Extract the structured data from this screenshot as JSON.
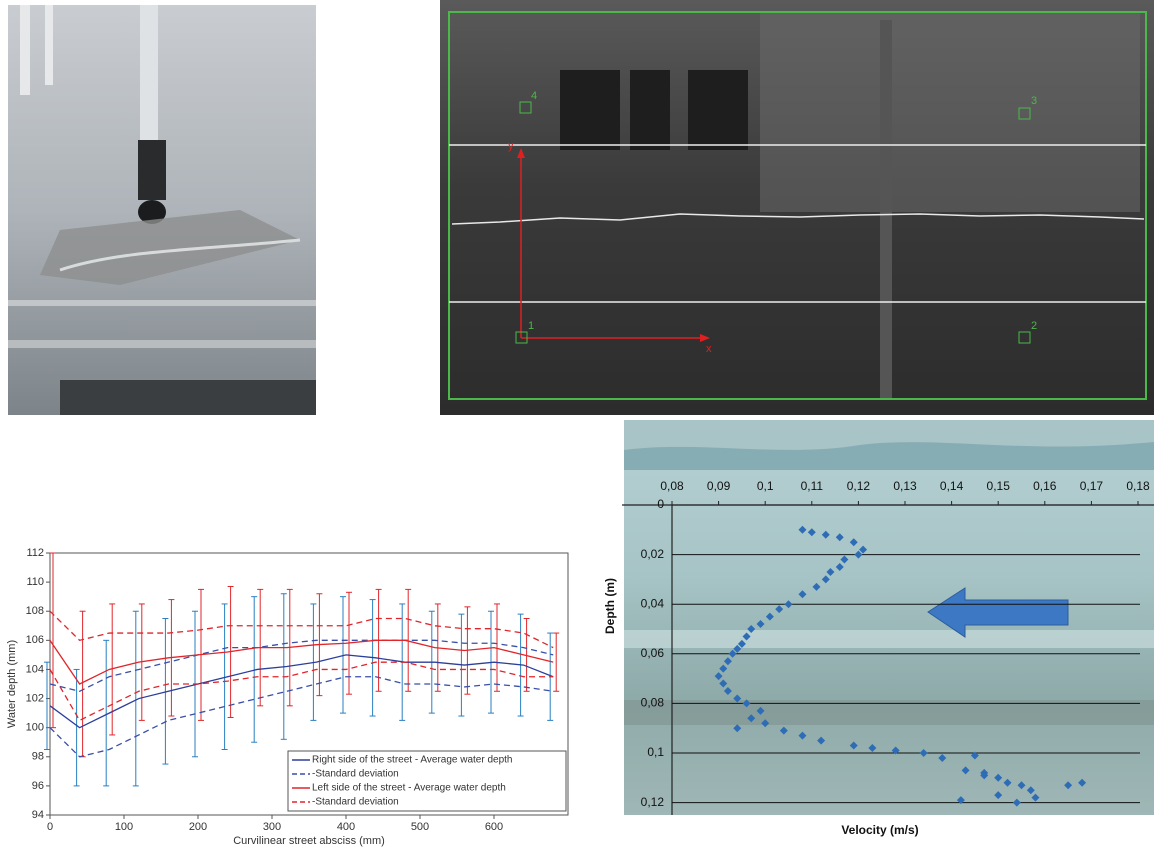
{
  "photo_annotations": {
    "points": [
      "1",
      "2",
      "3",
      "4"
    ],
    "axes": [
      "x",
      "y"
    ]
  },
  "chart_data": [
    {
      "type": "line",
      "x_label": "Curvilinear street absciss (mm)",
      "y_label": "Water depth (mm)",
      "x": [
        0,
        40,
        80,
        120,
        160,
        200,
        240,
        280,
        320,
        360,
        400,
        440,
        480,
        520,
        560,
        600,
        640,
        680
      ],
      "xlim": [
        0,
        700
      ],
      "xticks": [
        0,
        100,
        200,
        300,
        400,
        500,
        600
      ],
      "ylim": [
        94,
        112
      ],
      "yticks": [
        94,
        96,
        98,
        100,
        102,
        104,
        106,
        108,
        110,
        112
      ],
      "legend": "lower right",
      "series": [
        {
          "name": "Right side of the street - Average water depth",
          "color": "#2c3f9a",
          "bar_color": "#2b7fc1",
          "values": [
            101.5,
            100,
            101,
            102,
            102.5,
            103,
            103.5,
            104,
            104.2,
            104.5,
            105,
            104.8,
            104.5,
            104.5,
            104.3,
            104.5,
            104.3,
            103.5
          ],
          "errors": [
            3,
            4,
            5,
            6,
            5,
            5,
            5,
            5,
            5,
            4,
            4,
            4,
            4,
            3.5,
            3.5,
            3.5,
            3.5,
            3
          ]
        },
        {
          "name": "-Standard deviation",
          "color": "#3a4fa8",
          "dashed": true,
          "upper": [
            103,
            102.5,
            103.5,
            104,
            104.5,
            105,
            105.5,
            105.5,
            105.8,
            106,
            106,
            106,
            106,
            106,
            105.8,
            105.8,
            105.5,
            105
          ],
          "lower": [
            100,
            98,
            98.5,
            99.5,
            100.5,
            101,
            101.5,
            102,
            102.5,
            103,
            103.5,
            103.5,
            103,
            103,
            102.8,
            103,
            102.8,
            102.5
          ]
        },
        {
          "name": "Left side of the street - Average water depth",
          "color": "#e0262b",
          "bar_color": "#e0262b",
          "values": [
            106,
            103,
            104,
            104.5,
            104.8,
            105,
            105.2,
            105.5,
            105.5,
            105.7,
            105.8,
            106,
            106,
            105.5,
            105.3,
            105.5,
            105,
            104.5
          ],
          "errors": [
            6,
            5,
            4.5,
            4,
            4,
            4.5,
            4.5,
            4,
            4,
            3.5,
            3.5,
            3.5,
            3.5,
            3,
            3,
            3,
            2.5,
            2
          ]
        },
        {
          "name": "-Standard deviation",
          "color": "#e0262b",
          "dashed": true,
          "upper": [
            108,
            106,
            106.5,
            106.5,
            106.5,
            106.7,
            107,
            107,
            107,
            107,
            107,
            107.5,
            107.5,
            107,
            106.8,
            106.8,
            106.5,
            105.5
          ],
          "lower": [
            104,
            100.5,
            101.5,
            102.5,
            103,
            103,
            103.2,
            103.5,
            103.5,
            104,
            104,
            104.5,
            104.5,
            104,
            104,
            104,
            103.5,
            103.5
          ]
        }
      ]
    },
    {
      "type": "scatter",
      "x_label": "Velocity (m/s)",
      "y_label": "Depth (m)",
      "color": "#2e6db5",
      "y_inverted": true,
      "grid": true,
      "xlim": [
        0.08,
        0.18
      ],
      "xticks": [
        {
          "value": 0.08,
          "label": "0,08"
        },
        {
          "value": 0.09,
          "label": "0,09"
        },
        {
          "value": 0.1,
          "label": "0,1"
        },
        {
          "value": 0.11,
          "label": "0,11"
        },
        {
          "value": 0.12,
          "label": "0,12"
        },
        {
          "value": 0.13,
          "label": "0,13"
        },
        {
          "value": 0.14,
          "label": "0,14"
        },
        {
          "value": 0.15,
          "label": "0,15"
        },
        {
          "value": 0.16,
          "label": "0,16"
        },
        {
          "value": 0.17,
          "label": "0,17"
        },
        {
          "value": 0.18,
          "label": "0,18"
        }
      ],
      "ylim": [
        0,
        0.125
      ],
      "yticks": [
        0,
        {
          "value": 0.02,
          "label": "0,02"
        },
        {
          "value": 0.04,
          "label": "0,04"
        },
        {
          "value": 0.06,
          "label": "0,06"
        },
        {
          "value": 0.08,
          "label": "0,08"
        },
        {
          "value": 0.1,
          "label": "0,1"
        },
        {
          "value": 0.12,
          "label": "0,12"
        }
      ],
      "x": [
        0.108,
        0.11,
        0.113,
        0.116,
        0.119,
        0.121,
        0.12,
        0.117,
        0.116,
        0.114,
        0.113,
        0.111,
        0.108,
        0.105,
        0.103,
        0.101,
        0.099,
        0.097,
        0.096,
        0.095,
        0.094,
        0.093,
        0.092,
        0.091,
        0.09,
        0.091,
        0.092,
        0.094,
        0.096,
        0.099,
        0.097,
        0.1,
        0.094,
        0.104,
        0.108,
        0.112,
        0.119,
        0.123,
        0.128,
        0.134,
        0.138,
        0.145,
        0.143,
        0.147,
        0.15,
        0.152,
        0.155,
        0.157,
        0.158,
        0.154,
        0.15,
        0.142,
        0.147,
        0.165,
        0.168
      ],
      "values": [
        0.01,
        0.011,
        0.012,
        0.013,
        0.015,
        0.018,
        0.02,
        0.022,
        0.025,
        0.027,
        0.03,
        0.033,
        0.036,
        0.04,
        0.042,
        0.045,
        0.048,
        0.05,
        0.053,
        0.056,
        0.058,
        0.06,
        0.063,
        0.066,
        0.069,
        0.072,
        0.075,
        0.078,
        0.08,
        0.083,
        0.086,
        0.088,
        0.09,
        0.091,
        0.093,
        0.095,
        0.097,
        0.098,
        0.099,
        0.1,
        0.102,
        0.101,
        0.107,
        0.108,
        0.11,
        0.112,
        0.113,
        0.115,
        0.118,
        0.12,
        0.117,
        0.119,
        0.109,
        0.113,
        0.112
      ]
    }
  ]
}
